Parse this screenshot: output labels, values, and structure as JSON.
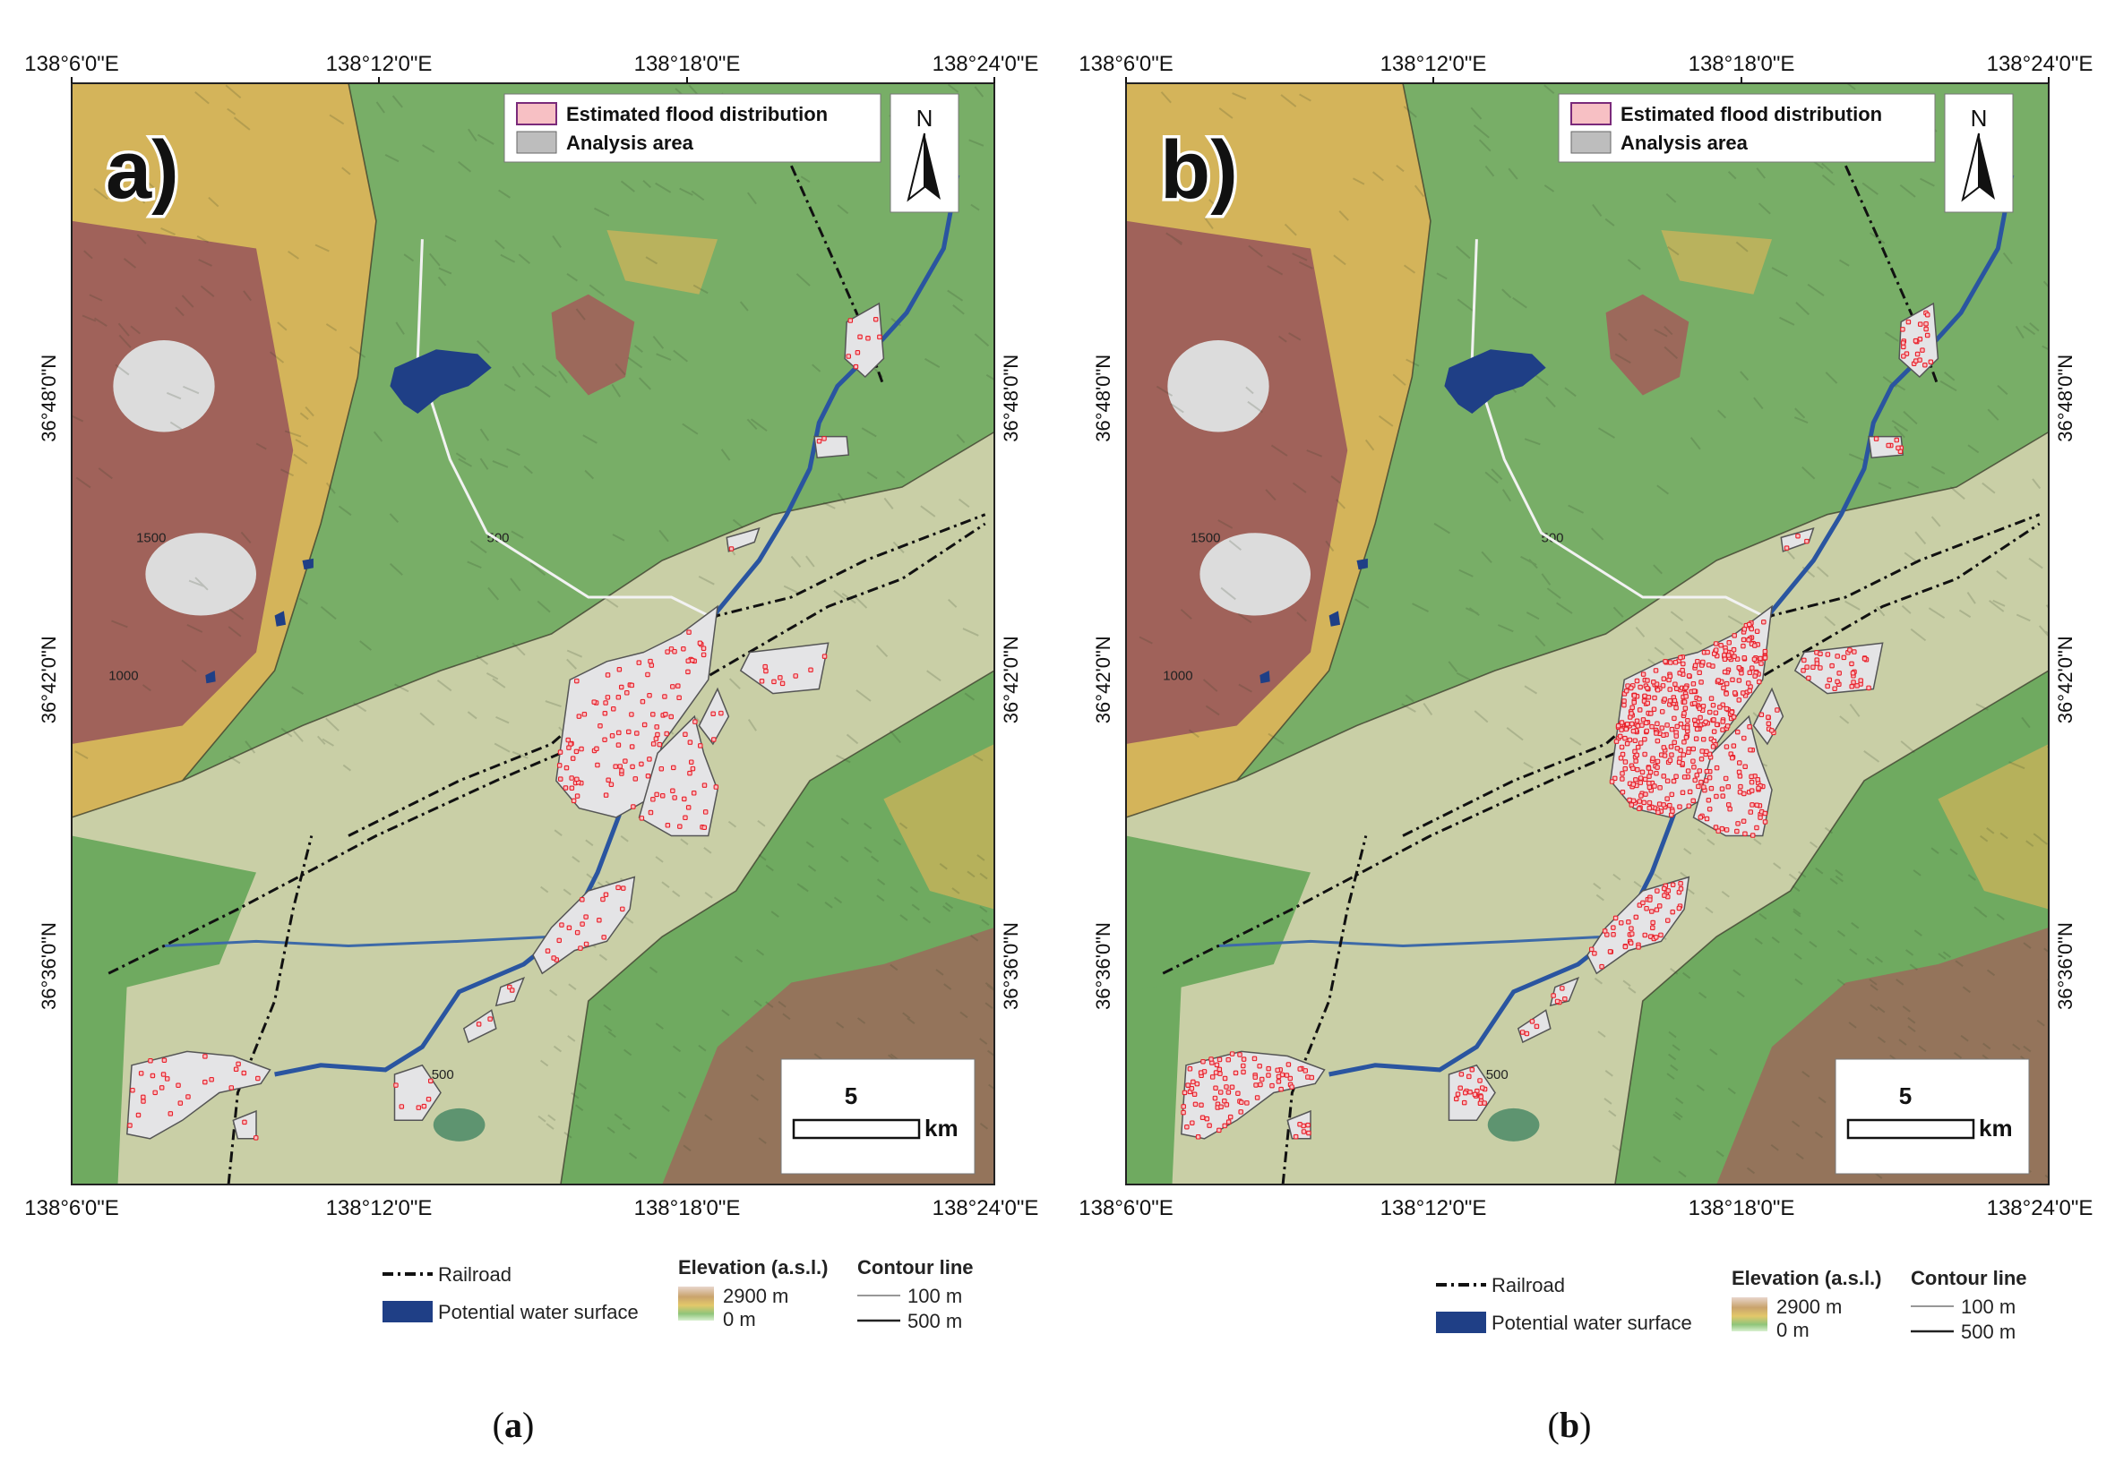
{
  "colors": {
    "flood": "#e8202a",
    "flood_fill": "#f7c0c4",
    "analysis_area": "#e4e4e6",
    "water": "#1f3f86",
    "lowland": "#c9cfa6",
    "hills": "#6faa60",
    "mid": "#d4b45a",
    "high": "#a0625a",
    "peak": "#dcdcdc"
  },
  "panels": [
    {
      "id": "a",
      "label": "a)",
      "caption_letter": "a",
      "top_lon_labels": [
        "138°6'0\"E",
        "138°12'0\"E",
        "138°18'0\"E",
        "138°24'0\"E"
      ],
      "bottom_lon_labels": [
        "138°6'0\"E",
        "138°12'0\"E",
        "138°18'0\"E",
        "138°24'0\"E"
      ],
      "lat_labels": [
        "36°48'0\"N",
        "36°42'0\"N",
        "36°36'0\"N"
      ],
      "legend_box": {
        "flood": "Estimated flood distribution",
        "area": "Analysis area"
      },
      "north": "N",
      "scale_value": "5",
      "scale_unit": "km",
      "contour_labels": [
        "500",
        "1000",
        "1500",
        "500"
      ],
      "flood_density": "sparse"
    },
    {
      "id": "b",
      "label": "b)",
      "caption_letter": "b",
      "top_lon_labels": [
        "138°6'0\"E",
        "138°12'0\"E",
        "138°18'0\"E",
        "138°24'0\"E"
      ],
      "bottom_lon_labels": [
        "138°6'0\"E",
        "138°12'0\"E",
        "138°18'0\"E",
        "138°24'0\"E"
      ],
      "lat_labels": [
        "36°48'0\"N",
        "36°42'0\"N",
        "36°36'0\"N"
      ],
      "legend_box": {
        "flood": "Estimated flood distribution",
        "area": "Analysis area"
      },
      "north": "N",
      "scale_value": "5",
      "scale_unit": "km",
      "contour_labels": [
        "500",
        "1000",
        "1500",
        "500"
      ],
      "flood_density": "dense"
    }
  ],
  "bottom_legend": {
    "railroad": "Railroad",
    "water": "Potential water surface",
    "elevation_title": "Elevation (a.s.l.)",
    "elev_high": "2900 m",
    "elev_low": "0 m",
    "contour_title": "Contour line",
    "contour_100": "100 m",
    "contour_500": "500 m"
  }
}
